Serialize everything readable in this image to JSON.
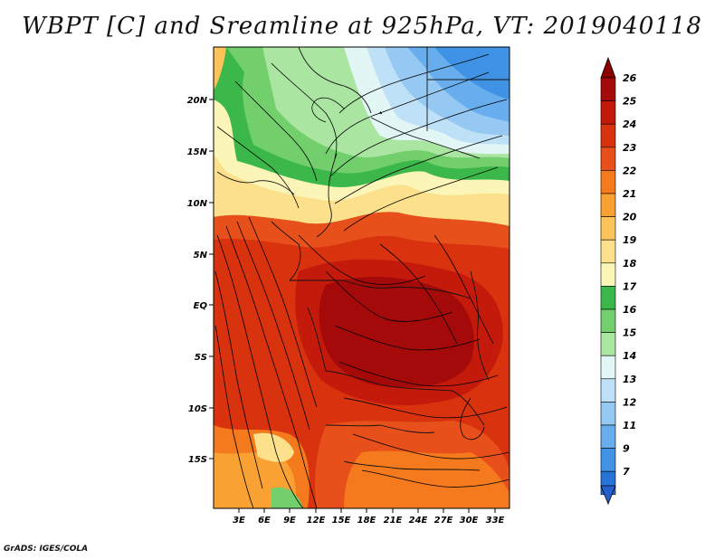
{
  "title": "WBPT [C] and Sreamline at 925hPa, VT: 2019040118",
  "credit": "GrADS: IGES/COLA",
  "map": {
    "lat_labels": [
      "20N",
      "15N",
      "10N",
      "5N",
      "EQ",
      "5S",
      "10S",
      "15S"
    ],
    "lon_labels": [
      "3E",
      "6E",
      "9E",
      "12E",
      "15E",
      "18E",
      "21E",
      "24E",
      "27E",
      "30E",
      "33E"
    ]
  },
  "colorbar": {
    "levels": [
      "26",
      "25",
      "24",
      "23",
      "22",
      "21",
      "20",
      "19",
      "18",
      "17",
      "16",
      "15",
      "14",
      "13",
      "12",
      "11",
      "9",
      "7"
    ],
    "colors": [
      "#a50a0a",
      "#c41a0b",
      "#d8320e",
      "#e7501a",
      "#f47a1d",
      "#f9a233",
      "#fcc35a",
      "#fce08c",
      "#fbf5b8",
      "#3cb84a",
      "#72cf6c",
      "#abe5a2",
      "#e2f6f5",
      "#bfe1f7",
      "#95c8f2",
      "#68aeee",
      "#3f92e4",
      "#2873d7"
    ],
    "top_color": "#8a0000",
    "bottom_color": "#2362cb"
  }
}
